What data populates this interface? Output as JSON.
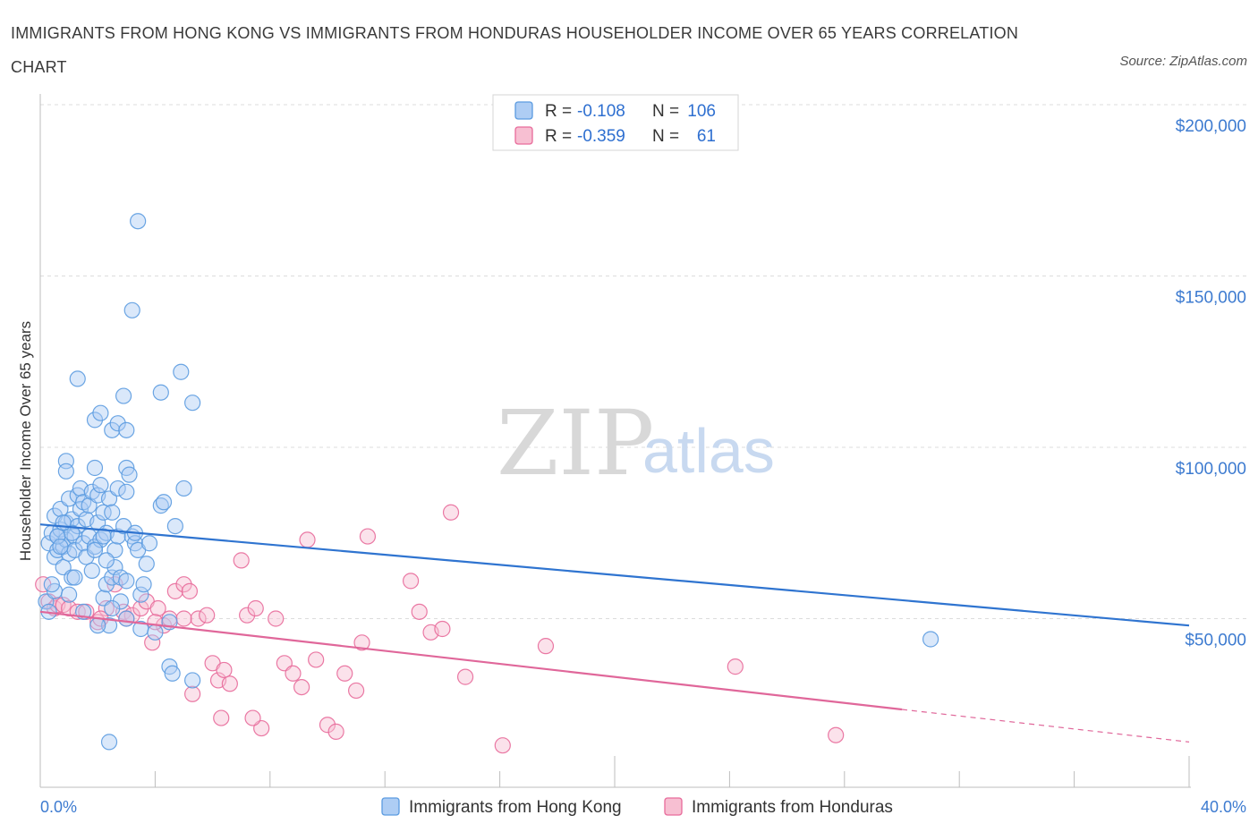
{
  "title": "IMMIGRANTS FROM HONG KONG VS IMMIGRANTS FROM HONDURAS HOUSEHOLDER INCOME OVER 65 YEARS CORRELATION CHART",
  "source": "Source: ZipAtlas.com",
  "watermark": {
    "zip": "ZIP",
    "atlas": "atlas"
  },
  "colors": {
    "blue": "#5b9be0",
    "blue_fill": "#aecdf4",
    "pink": "#e86a9a",
    "pink_fill": "#f7bfd2",
    "axis_text": "#3d7bd0"
  },
  "legend": {
    "r_label": "R =",
    "n_label": "N =",
    "rows": [
      {
        "r": "-0.108",
        "n": "106"
      },
      {
        "r": "-0.359",
        "n": "61"
      }
    ]
  },
  "chart_data": {
    "type": "scatter",
    "title": "IMMIGRANTS FROM HONG KONG VS IMMIGRANTS FROM HONDURAS HOUSEHOLDER INCOME OVER 65 YEARS CORRELATION CHART",
    "xlabel": "",
    "ylabel": "Householder Income Over 65 years",
    "xlim": [
      0,
      40
    ],
    "ylim": [
      0,
      200000
    ],
    "x_tick_labels": [
      "0.0%",
      "40.0%"
    ],
    "y_ticks": [
      50000,
      100000,
      150000,
      200000
    ],
    "y_tick_labels": [
      "$50,000",
      "$100,000",
      "$150,000",
      "$200,000"
    ],
    "series": [
      {
        "name": "Immigrants from Hong Kong",
        "color": "blue",
        "r": -0.108,
        "n": 106,
        "trend": {
          "x0": 0,
          "y0": 77500,
          "x1": 40,
          "y1": 48000
        },
        "points": [
          [
            0.3,
            72000
          ],
          [
            0.4,
            75000
          ],
          [
            0.5,
            80000
          ],
          [
            0.5,
            68000
          ],
          [
            0.6,
            74000
          ],
          [
            0.6,
            70000
          ],
          [
            0.7,
            82000
          ],
          [
            0.7,
            76000
          ],
          [
            0.8,
            71000
          ],
          [
            0.8,
            65000
          ],
          [
            0.9,
            78000
          ],
          [
            0.9,
            73000
          ],
          [
            1.0,
            85000
          ],
          [
            1.0,
            69000
          ],
          [
            1.1,
            79000
          ],
          [
            1.1,
            62000
          ],
          [
            1.2,
            74000
          ],
          [
            1.2,
            70000
          ],
          [
            1.3,
            86000
          ],
          [
            1.3,
            77000
          ],
          [
            1.4,
            82000
          ],
          [
            1.4,
            88000
          ],
          [
            1.5,
            72000
          ],
          [
            1.5,
            84000
          ],
          [
            1.6,
            79000
          ],
          [
            1.6,
            68000
          ],
          [
            1.7,
            83000
          ],
          [
            1.7,
            74000
          ],
          [
            1.8,
            87000
          ],
          [
            1.8,
            64000
          ],
          [
            1.9,
            71000
          ],
          [
            1.9,
            94000
          ],
          [
            2.0,
            86000
          ],
          [
            2.0,
            78000
          ],
          [
            2.1,
            89000
          ],
          [
            2.1,
            73000
          ],
          [
            2.2,
            81000
          ],
          [
            2.2,
            56000
          ],
          [
            2.3,
            75000
          ],
          [
            2.3,
            60000
          ],
          [
            2.4,
            85000
          ],
          [
            2.4,
            48000
          ],
          [
            2.5,
            81000
          ],
          [
            2.5,
            62000
          ],
          [
            2.6,
            70000
          ],
          [
            2.6,
            65000
          ],
          [
            2.7,
            88000
          ],
          [
            2.7,
            74000
          ],
          [
            2.8,
            55000
          ],
          [
            2.8,
            62000
          ],
          [
            2.9,
            77000
          ],
          [
            3.0,
            87000
          ],
          [
            3.0,
            94000
          ],
          [
            3.1,
            92000
          ],
          [
            3.2,
            74000
          ],
          [
            3.3,
            72000
          ],
          [
            3.3,
            75000
          ],
          [
            3.4,
            70000
          ],
          [
            3.5,
            57000
          ],
          [
            3.6,
            60000
          ],
          [
            3.7,
            66000
          ],
          [
            3.8,
            72000
          ],
          [
            4.2,
            83000
          ],
          [
            4.3,
            84000
          ],
          [
            4.5,
            49000
          ],
          [
            4.7,
            77000
          ],
          [
            5.0,
            88000
          ],
          [
            0.2,
            55000
          ],
          [
            0.3,
            52000
          ],
          [
            0.5,
            58000
          ],
          [
            1.0,
            57000
          ],
          [
            1.5,
            52000
          ],
          [
            2.0,
            48000
          ],
          [
            2.5,
            53000
          ],
          [
            3.0,
            50000
          ],
          [
            3.5,
            47000
          ],
          [
            4.0,
            46000
          ],
          [
            4.5,
            36000
          ],
          [
            4.6,
            34000
          ],
          [
            5.3,
            32000
          ],
          [
            0.9,
            96000
          ],
          [
            0.9,
            93000
          ],
          [
            1.3,
            120000
          ],
          [
            1.9,
            108000
          ],
          [
            2.1,
            110000
          ],
          [
            2.5,
            105000
          ],
          [
            2.7,
            107000
          ],
          [
            3.0,
            105000
          ],
          [
            2.9,
            115000
          ],
          [
            3.2,
            140000
          ],
          [
            3.4,
            166000
          ],
          [
            4.2,
            116000
          ],
          [
            4.9,
            122000
          ],
          [
            5.3,
            113000
          ],
          [
            2.4,
            14000
          ],
          [
            3.0,
            61000
          ],
          [
            1.2,
            62000
          ],
          [
            0.4,
            60000
          ],
          [
            0.6,
            74000
          ],
          [
            1.9,
            70000
          ],
          [
            2.3,
            67000
          ],
          [
            2.2,
            74000
          ],
          [
            1.1,
            75000
          ],
          [
            0.7,
            71000
          ],
          [
            31.0,
            44000
          ],
          [
            0.8,
            78000
          ]
        ]
      },
      {
        "name": "Immigrants from Honduras",
        "color": "pink",
        "r": -0.359,
        "n": 61,
        "trend": {
          "x0": 0,
          "y0": 52000,
          "x1": 30,
          "y1": 23500,
          "dash_x1": 40,
          "dash_y1": 14000
        },
        "points": [
          [
            0.1,
            60000
          ],
          [
            0.3,
            55000
          ],
          [
            0.5,
            53000
          ],
          [
            0.6,
            54000
          ],
          [
            0.8,
            54000
          ],
          [
            1.0,
            53000
          ],
          [
            1.3,
            52000
          ],
          [
            1.6,
            52000
          ],
          [
            2.0,
            49000
          ],
          [
            2.3,
            53000
          ],
          [
            2.6,
            60000
          ],
          [
            2.9,
            52000
          ],
          [
            3.2,
            51000
          ],
          [
            3.5,
            53000
          ],
          [
            3.7,
            55000
          ],
          [
            3.9,
            43000
          ],
          [
            4.1,
            53000
          ],
          [
            4.3,
            48000
          ],
          [
            4.5,
            50000
          ],
          [
            4.7,
            58000
          ],
          [
            5.0,
            60000
          ],
          [
            5.2,
            58000
          ],
          [
            5.5,
            50000
          ],
          [
            5.8,
            51000
          ],
          [
            6.0,
            37000
          ],
          [
            6.2,
            32000
          ],
          [
            6.4,
            35000
          ],
          [
            6.6,
            31000
          ],
          [
            7.0,
            67000
          ],
          [
            7.2,
            51000
          ],
          [
            7.5,
            53000
          ],
          [
            7.7,
            18000
          ],
          [
            8.2,
            50000
          ],
          [
            8.5,
            37000
          ],
          [
            8.8,
            34000
          ],
          [
            9.1,
            30000
          ],
          [
            9.3,
            73000
          ],
          [
            9.6,
            38000
          ],
          [
            10.0,
            19000
          ],
          [
            10.3,
            17000
          ],
          [
            10.6,
            34000
          ],
          [
            11.0,
            29000
          ],
          [
            11.2,
            43000
          ],
          [
            11.4,
            74000
          ],
          [
            12.9,
            61000
          ],
          [
            13.2,
            52000
          ],
          [
            13.6,
            46000
          ],
          [
            14.0,
            47000
          ],
          [
            14.3,
            81000
          ],
          [
            14.8,
            33000
          ],
          [
            16.1,
            13000
          ],
          [
            17.6,
            42000
          ],
          [
            24.2,
            36000
          ],
          [
            27.7,
            16000
          ],
          [
            5.3,
            28000
          ],
          [
            6.3,
            21000
          ],
          [
            7.4,
            21000
          ],
          [
            2.1,
            50000
          ],
          [
            3.0,
            50000
          ],
          [
            4.0,
            49000
          ],
          [
            5.0,
            50000
          ]
        ]
      }
    ]
  },
  "bottom_legend": [
    "Immigrants from Hong Kong",
    "Immigrants from Honduras"
  ]
}
